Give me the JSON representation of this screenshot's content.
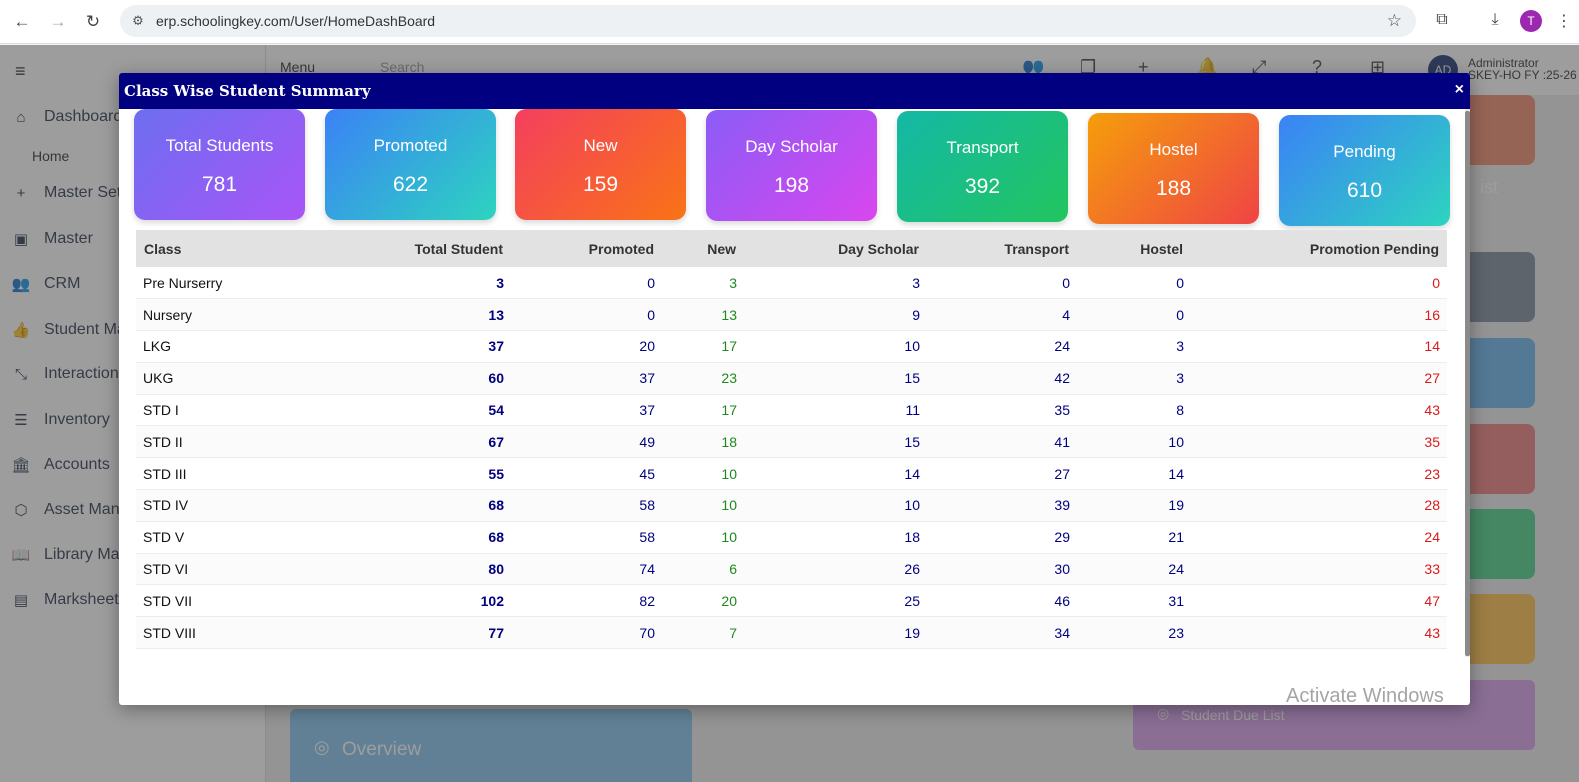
{
  "browser": {
    "url": "erp.schoolingkey.com/User/HomeDashBoard",
    "profile_initial": "T"
  },
  "app": {
    "sidebar": {
      "items": [
        {
          "label": "Dashboard",
          "icon": "house-icon"
        },
        {
          "label": "Master Sett",
          "icon": "plus-icon"
        },
        {
          "label": "Master",
          "icon": "briefcase-icon"
        },
        {
          "label": "CRM",
          "icon": "users-icon"
        },
        {
          "label": "Student Ma",
          "icon": "thumbs-up-icon"
        },
        {
          "label": "Interaction",
          "icon": "compress-icon"
        },
        {
          "label": "Inventory",
          "icon": "server-icon"
        },
        {
          "label": "Accounts",
          "icon": "bank-icon"
        },
        {
          "label": "Asset Mana",
          "icon": "cube-icon"
        },
        {
          "label": "Library Mar",
          "icon": "book-icon"
        },
        {
          "label": "Marksheet",
          "icon": "sheet-icon"
        }
      ],
      "sub_home": "Home"
    },
    "topbar": {
      "menu_label": "Menu",
      "search_placeholder": "Search",
      "avatar": "AD",
      "user_name": "Administrator",
      "user_fy": "SKEY-HO FY :25-26"
    },
    "overview_label": "Overview",
    "due_list_label": "Student Due List",
    "right_tile_text": "ist",
    "watermark": "Activate Windows"
  },
  "modal": {
    "title": "Class Wise Student Summary",
    "close_glyph": "×",
    "cards": [
      {
        "label": "Total Students",
        "value": "781",
        "gradient": [
          "#6d6ef0",
          "#a855f7"
        ]
      },
      {
        "label": "Promoted",
        "value": "622",
        "gradient": [
          "#3b82f6",
          "#2dd4bf"
        ]
      },
      {
        "label": "New",
        "value": "159",
        "gradient": [
          "#f43f5e",
          "#f97316"
        ]
      },
      {
        "label": "Day Scholar",
        "value": "198",
        "gradient": [
          "#8b5cf6",
          "#d946ef"
        ]
      },
      {
        "label": "Transport",
        "value": "392",
        "gradient": [
          "#14b8a6",
          "#22c55e"
        ]
      },
      {
        "label": "Hostel",
        "value": "188",
        "gradient": [
          "#f59e0b",
          "#ef4444"
        ]
      },
      {
        "label": "Pending",
        "value": "610",
        "gradient": [
          "#3b82f6",
          "#2dd4bf"
        ]
      }
    ],
    "table": {
      "columns": [
        "Class",
        "Total Student",
        "Promoted",
        "New",
        "Day Scholar",
        "Transport",
        "Hostel",
        "Promotion Pending"
      ],
      "rows": [
        [
          "Pre Nurserry",
          "3",
          "0",
          "3",
          "3",
          "0",
          "0",
          "0"
        ],
        [
          "Nursery",
          "13",
          "0",
          "13",
          "9",
          "4",
          "0",
          "16"
        ],
        [
          "LKG",
          "37",
          "20",
          "17",
          "10",
          "24",
          "3",
          "14"
        ],
        [
          "UKG",
          "60",
          "37",
          "23",
          "15",
          "42",
          "3",
          "27"
        ],
        [
          "STD I",
          "54",
          "37",
          "17",
          "11",
          "35",
          "8",
          "43"
        ],
        [
          "STD II",
          "67",
          "49",
          "18",
          "15",
          "41",
          "10",
          "35"
        ],
        [
          "STD III",
          "55",
          "45",
          "10",
          "14",
          "27",
          "14",
          "23"
        ],
        [
          "STD IV",
          "68",
          "58",
          "10",
          "10",
          "39",
          "19",
          "28"
        ],
        [
          "STD V",
          "68",
          "58",
          "10",
          "18",
          "29",
          "21",
          "24"
        ],
        [
          "STD VI",
          "80",
          "74",
          "6",
          "26",
          "30",
          "24",
          "33"
        ],
        [
          "STD VII",
          "102",
          "82",
          "20",
          "25",
          "46",
          "31",
          "47"
        ],
        [
          "STD VIII",
          "77",
          "70",
          "7",
          "19",
          "34",
          "23",
          "43"
        ]
      ]
    }
  }
}
